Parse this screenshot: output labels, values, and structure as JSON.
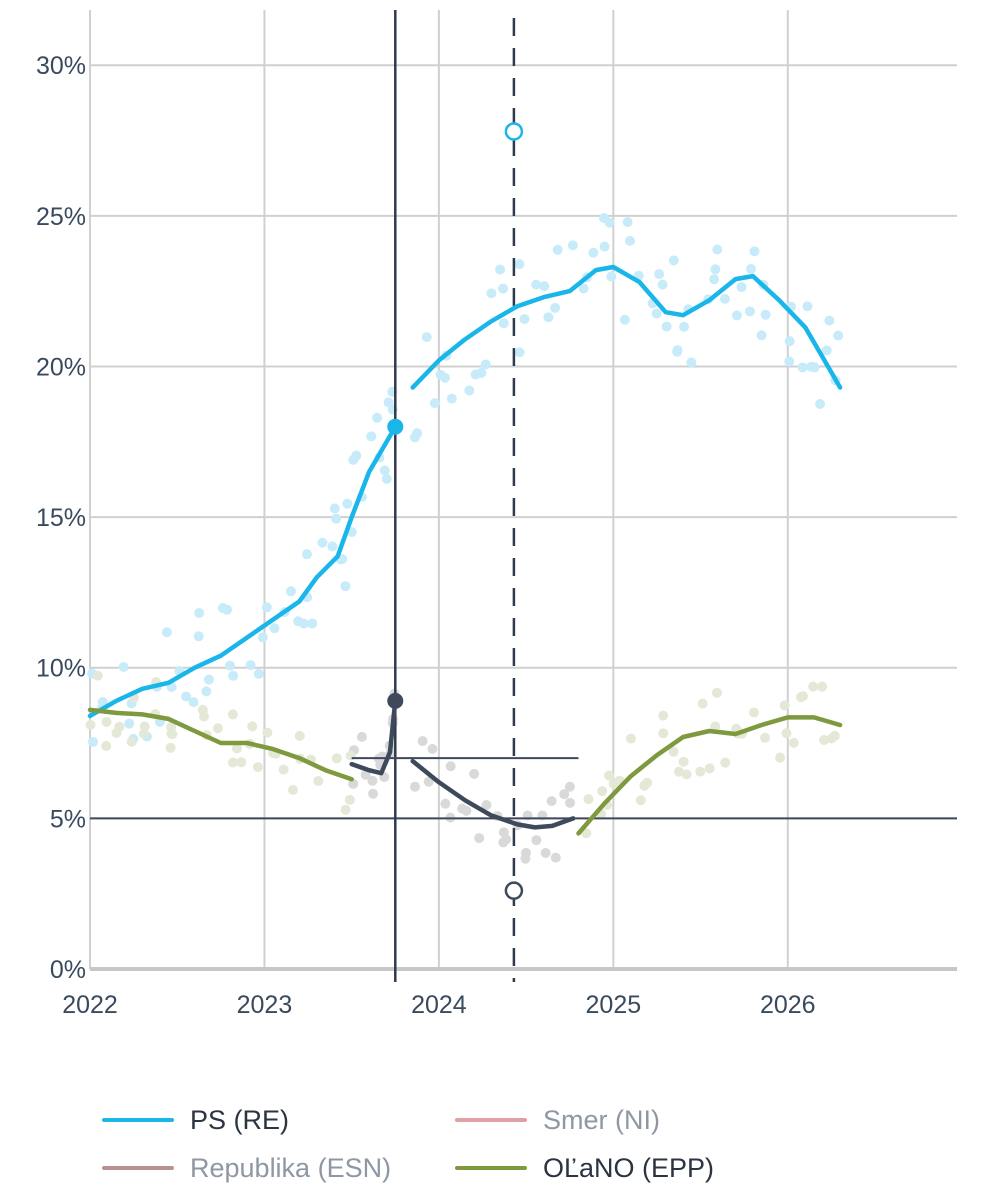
{
  "chart_data": {
    "type": "line",
    "title": "",
    "xlabel": "",
    "ylabel": "",
    "x_ticks": [
      "2022",
      "2023",
      "2024",
      "2025",
      "2026"
    ],
    "y_ticks": [
      "0%",
      "5%",
      "10%",
      "15%",
      "20%",
      "25%",
      "30%"
    ],
    "xlim": [
      2022.0,
      2026.97
    ],
    "ylim": [
      0,
      31.5
    ],
    "grid": true,
    "threshold_line": 5,
    "last_election_date": 2023.75,
    "last_election_results": [
      {
        "party": "PS (RE)",
        "value": 18.0
      },
      {
        "party": "Republika (ESN)",
        "value": 8.9
      }
    ],
    "projection_date": 2024.43,
    "projection_values": [
      {
        "party": "PS (RE)",
        "value": 27.8
      },
      {
        "party": "Republika (ESN)",
        "value": 2.6
      }
    ],
    "series": [
      {
        "name": "PS (RE)",
        "color": "#1ab6ea",
        "segments": [
          [
            [
              2022.0,
              8.4
            ],
            [
              2022.15,
              8.9
            ],
            [
              2022.3,
              9.3
            ],
            [
              2022.45,
              9.5
            ],
            [
              2022.6,
              10.0
            ],
            [
              2022.75,
              10.4
            ],
            [
              2022.9,
              11.0
            ],
            [
              2023.05,
              11.6
            ],
            [
              2023.2,
              12.2
            ],
            [
              2023.3,
              13.0
            ],
            [
              2023.42,
              13.7
            ],
            [
              2023.5,
              15.0
            ],
            [
              2023.6,
              16.5
            ],
            [
              2023.7,
              17.5
            ],
            [
              2023.75,
              18.0
            ]
          ],
          [
            [
              2023.85,
              19.3
            ],
            [
              2024.0,
              20.2
            ],
            [
              2024.15,
              20.9
            ],
            [
              2024.3,
              21.5
            ],
            [
              2024.45,
              22.0
            ],
            [
              2024.6,
              22.3
            ],
            [
              2024.75,
              22.5
            ],
            [
              2024.9,
              23.2
            ],
            [
              2025.0,
              23.3
            ],
            [
              2025.15,
              22.8
            ],
            [
              2025.3,
              21.8
            ],
            [
              2025.4,
              21.7
            ],
            [
              2025.55,
              22.2
            ],
            [
              2025.7,
              22.9
            ],
            [
              2025.8,
              23.0
            ],
            [
              2025.95,
              22.2
            ],
            [
              2026.1,
              21.3
            ],
            [
              2026.2,
              20.3
            ],
            [
              2026.3,
              19.3
            ]
          ]
        ]
      },
      {
        "name": "Republika (ESN)",
        "color": "#3e4a5c",
        "segments": [
          [
            [
              2023.5,
              6.8
            ],
            [
              2023.6,
              6.6
            ],
            [
              2023.67,
              6.5
            ],
            [
              2023.72,
              7.2
            ],
            [
              2023.75,
              8.9
            ]
          ],
          [
            [
              2023.85,
              6.9
            ],
            [
              2024.0,
              6.2
            ],
            [
              2024.15,
              5.6
            ],
            [
              2024.3,
              5.1
            ],
            [
              2024.45,
              4.8
            ],
            [
              2024.55,
              4.7
            ],
            [
              2024.65,
              4.75
            ],
            [
              2024.77,
              5.0
            ]
          ]
        ]
      },
      {
        "name": "OĽaNO (EPP)",
        "color": "#7f9a3e",
        "segments": [
          [
            [
              2022.0,
              8.6
            ],
            [
              2022.15,
              8.5
            ],
            [
              2022.3,
              8.45
            ],
            [
              2022.45,
              8.3
            ],
            [
              2022.6,
              7.9
            ],
            [
              2022.75,
              7.5
            ],
            [
              2022.9,
              7.5
            ],
            [
              2023.05,
              7.3
            ],
            [
              2023.2,
              7.0
            ],
            [
              2023.35,
              6.6
            ],
            [
              2023.5,
              6.3
            ]
          ],
          [
            [
              2024.8,
              4.5
            ],
            [
              2024.95,
              5.5
            ],
            [
              2025.1,
              6.4
            ],
            [
              2025.25,
              7.1
            ],
            [
              2025.4,
              7.7
            ],
            [
              2025.55,
              7.9
            ],
            [
              2025.7,
              7.8
            ],
            [
              2025.85,
              8.1
            ],
            [
              2026.0,
              8.35
            ],
            [
              2026.15,
              8.35
            ],
            [
              2026.3,
              8.1
            ]
          ]
        ]
      }
    ]
  },
  "legend": {
    "items": [
      {
        "label": "PS (RE)",
        "color": "#1ab6ea",
        "active": true
      },
      {
        "label": "Smer (NI)",
        "color": "#e0a0a4",
        "active": false
      },
      {
        "label": "Republika (ESN)",
        "color": "#b99191",
        "active": false
      },
      {
        "label": "OĽaNO (EPP)",
        "color": "#7f9a3e",
        "active": true
      }
    ]
  }
}
